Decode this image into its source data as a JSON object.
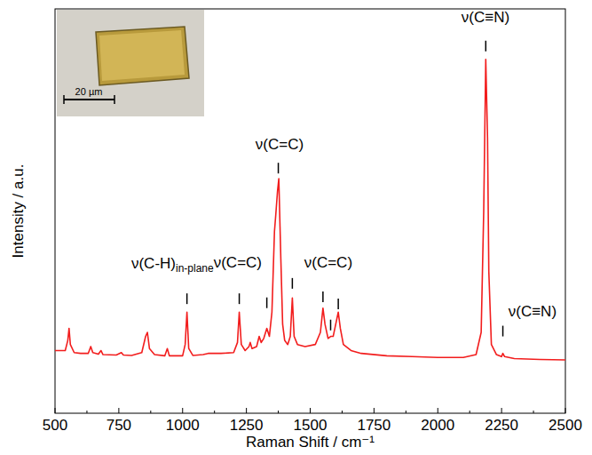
{
  "chart_data": {
    "type": "line",
    "xlabel": "Raman Shift / cm⁻¹",
    "ylabel": "Intensity / a.u.",
    "xlim": [
      500,
      2500
    ],
    "xticks": [
      500,
      750,
      1000,
      1250,
      1500,
      1750,
      2000,
      2250,
      2500
    ],
    "ylim": [
      0,
      100
    ],
    "tick_labels": "x",
    "grid": false,
    "color": "#f21d1d",
    "x": [
      500,
      540,
      550,
      555,
      560,
      575,
      600,
      630,
      640,
      648,
      670,
      680,
      688,
      740,
      760,
      768,
      800,
      840,
      855,
      862,
      870,
      890,
      930,
      940,
      948,
      1000,
      1010,
      1017,
      1024,
      1040,
      1080,
      1100,
      1150,
      1200,
      1215,
      1222,
      1230,
      1245,
      1260,
      1265,
      1272,
      1290,
      1300,
      1308,
      1318,
      1330,
      1340,
      1350,
      1360,
      1365,
      1372,
      1377,
      1385,
      1392,
      1400,
      1412,
      1422,
      1430,
      1437,
      1450,
      1480,
      1520,
      1540,
      1550,
      1558,
      1570,
      1580,
      1590,
      1600,
      1610,
      1618,
      1630,
      1660,
      1700,
      1800,
      1900,
      2000,
      2100,
      2150,
      2170,
      2180,
      2188,
      2195,
      2200,
      2210,
      2230,
      2250,
      2255,
      2262,
      2300,
      2400,
      2500
    ],
    "values": [
      15.5,
      15.5,
      18,
      21,
      17,
      15,
      14.8,
      14.8,
      16.5,
      15,
      14.6,
      15.5,
      14.5,
      14.4,
      15,
      14.4,
      14.3,
      15,
      19,
      20,
      16,
      14.5,
      14.2,
      16,
      14.2,
      14.2,
      17,
      25,
      16,
      14.3,
      14.5,
      14.8,
      14.8,
      15,
      17.5,
      25,
      17,
      15.5,
      16.5,
      17.5,
      16,
      16.5,
      19,
      17.5,
      18.5,
      21,
      19,
      25,
      45,
      49,
      55,
      58,
      38,
      22,
      18,
      17,
      19,
      28.5,
      19,
      17,
      16.5,
      17,
      20,
      26,
      22,
      18.5,
      19,
      19,
      22,
      25,
      21,
      17,
      15.5,
      14.8,
      14.2,
      14,
      13.8,
      13.8,
      14.5,
      20,
      50,
      87.5,
      68,
      35,
      17,
      14.5,
      14,
      14.8,
      14,
      13.5,
      13.3,
      13.2
    ],
    "peak_marks": [
      {
        "x": 1017,
        "y": 27
      },
      {
        "x": 1222,
        "y": 27
      },
      {
        "x": 1330,
        "y": 26
      },
      {
        "x": 1375,
        "y": 59.3
      },
      {
        "x": 1430,
        "y": 30.8
      },
      {
        "x": 1550,
        "y": 27.5
      },
      {
        "x": 1580,
        "y": 20.5
      },
      {
        "x": 1610,
        "y": 25.7
      },
      {
        "x": 2188,
        "y": 89.5
      },
      {
        "x": 2255,
        "y": 19
      }
    ],
    "annotations": [
      {
        "text": "ν(C-H)",
        "sub": "in-plane",
        "x": 799,
        "y": 35.8
      },
      {
        "text": "ν(C=C)",
        "x": 1216,
        "y": 36
      },
      {
        "text": "ν(C=C)",
        "x": 1380,
        "y": 65.3
      },
      {
        "text": "ν(C=C)",
        "x": 1571,
        "y": 36
      },
      {
        "text": "ν(C≡N)",
        "x": 2187,
        "y": 96.7
      },
      {
        "text": "ν(C≡N)",
        "x": 2371,
        "y": 24
      }
    ],
    "inset_scale_bar": "20 µm"
  }
}
